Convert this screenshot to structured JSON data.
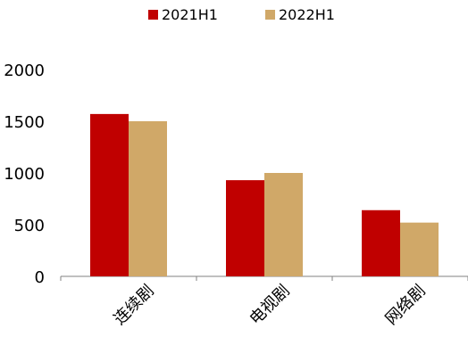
{
  "chart_data": {
    "type": "bar",
    "title": "",
    "xlabel": "",
    "ylabel": "",
    "categories": [
      "连续剧",
      "电视剧",
      "网络剧"
    ],
    "series": [
      {
        "name": "2021H1",
        "values": [
          1570,
          930,
          640
        ],
        "color": "#C00000"
      },
      {
        "name": "2022H1",
        "values": [
          1500,
          1000,
          520
        ],
        "color": "#D0A868"
      }
    ],
    "ylim": [
      0,
      2000
    ],
    "yticks": [
      "0",
      "500",
      "1000",
      "1500",
      "2000"
    ],
    "grid": false,
    "legend_position": "top-center"
  }
}
